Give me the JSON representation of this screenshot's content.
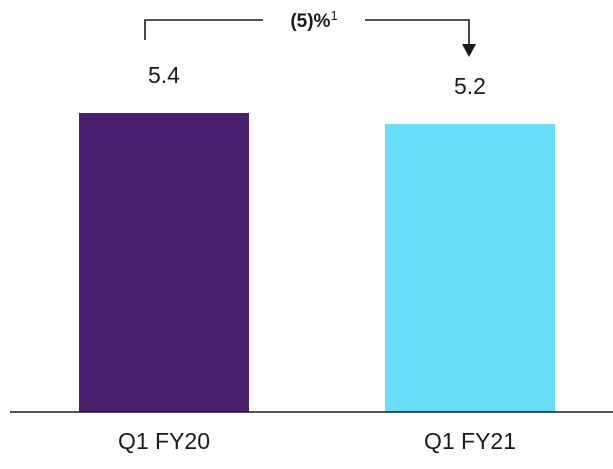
{
  "chart_data": {
    "type": "bar",
    "categories": [
      "Q1 FY20",
      "Q1 FY21"
    ],
    "values": [
      5.4,
      5.2
    ],
    "value_labels": [
      "5.4",
      "5.2"
    ],
    "colors": [
      "#4a2070",
      "#6adcfc"
    ],
    "ylim": [
      0,
      5.4
    ],
    "title": "",
    "xlabel": "",
    "ylabel": "",
    "grid": false,
    "annotation": {
      "text": "(5)%",
      "footnote": "1",
      "from": "Q1 FY20",
      "to": "Q1 FY21"
    }
  }
}
